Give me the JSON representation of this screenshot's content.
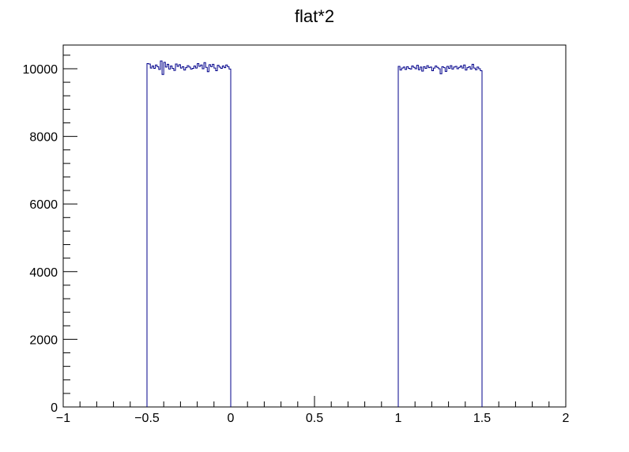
{
  "chart_data": {
    "type": "histogram",
    "title": "flat*2",
    "xlabel": "",
    "ylabel": "",
    "xlim": [
      -1,
      2
    ],
    "ylim": [
      0,
      10700
    ],
    "grid": false,
    "legend": "none",
    "line_color": "#00008b",
    "x_ticks": [
      {
        "value": -1,
        "label": "−1"
      },
      {
        "value": -0.5,
        "label": "−0.5"
      },
      {
        "value": 0,
        "label": "0"
      },
      {
        "value": 0.5,
        "label": "0.5"
      },
      {
        "value": 1,
        "label": "1"
      },
      {
        "value": 1.5,
        "label": "1.5"
      },
      {
        "value": 2,
        "label": "2"
      }
    ],
    "y_ticks": [
      {
        "value": 0,
        "label": "0"
      },
      {
        "value": 2000,
        "label": "2000"
      },
      {
        "value": 4000,
        "label": "4000"
      },
      {
        "value": 6000,
        "label": "6000"
      },
      {
        "value": 8000,
        "label": "8000"
      },
      {
        "value": 10000,
        "label": "10000"
      }
    ],
    "bin_width": 0.01,
    "segments": [
      {
        "x_start": -0.5,
        "x_end": 0.0,
        "counts": [
          10150,
          10140,
          10020,
          10080,
          10010,
          10110,
          10060,
          9980,
          10230,
          9830,
          10190,
          10050,
          10130,
          9990,
          10080,
          10010,
          9950,
          10140,
          10070,
          10120,
          10020,
          10060,
          9960,
          10030,
          10090,
          10050,
          9990,
          10010,
          10080,
          10020,
          10150,
          10070,
          10110,
          10000,
          10180,
          10040,
          9910,
          10120,
          10060,
          10130,
          10020,
          9940,
          10100,
          10050,
          10010,
          10080,
          10030,
          10110,
          10060,
          9990
        ]
      },
      {
        "x_start": 1.0,
        "x_end": 1.5,
        "counts": [
          10070,
          9960,
          10020,
          10050,
          9980,
          10060,
          10010,
          9990,
          10080,
          10040,
          10000,
          10100,
          9970,
          10050,
          9930,
          10060,
          10010,
          10090,
          10030,
          10050,
          9940,
          10020,
          10080,
          10040,
          10000,
          9850,
          10060,
          10030,
          9920,
          10070,
          10010,
          10090,
          9990,
          10050,
          10070,
          10000,
          10040,
          10080,
          10020,
          10110,
          9960,
          10030,
          10060,
          9990,
          10130,
          10020,
          9970,
          10050,
          10000,
          9940
        ]
      }
    ]
  }
}
